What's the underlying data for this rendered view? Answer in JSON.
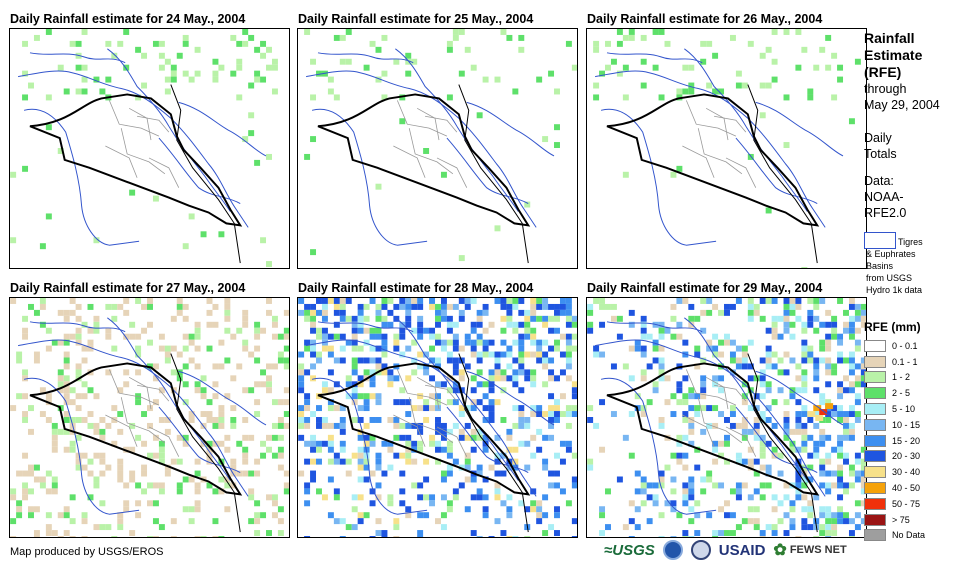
{
  "panels": [
    {
      "title": "Daily Rainfall estimate for 24 May., 2004",
      "rain_level": "minimal"
    },
    {
      "title": "Daily Rainfall estimate for 25 May., 2004",
      "rain_level": "minimal"
    },
    {
      "title": "Daily Rainfall estimate for 26 May., 2004",
      "rain_level": "minimal"
    },
    {
      "title": "Daily Rainfall estimate for 27 May., 2004",
      "rain_level": "light"
    },
    {
      "title": "Daily Rainfall estimate for 28 May., 2004",
      "rain_level": "heavy"
    },
    {
      "title": "Daily Rainfall estimate for 29 May., 2004",
      "rain_level": "moderate"
    }
  ],
  "sidebar": {
    "heading": "Rainfall Estimate (RFE)",
    "heading_lines": [
      "Rainfall",
      "Estimate",
      "(RFE)"
    ],
    "through": "through",
    "date": "May 29, 2004",
    "totals_lines": [
      "Daily",
      "Totals"
    ],
    "data_lines": [
      "Data:",
      "NOAA-",
      "RFE2.0"
    ],
    "basins_lines": [
      "Tigres",
      "& Euphrates",
      "Basins",
      "from USGS",
      "Hydro 1k data"
    ]
  },
  "legend": {
    "title": "RFE (mm)",
    "items": [
      {
        "label": "0 - 0.1",
        "color": "#ffffff"
      },
      {
        "label": "0.1 - 1",
        "color": "#e6d4b8"
      },
      {
        "label": "1 - 2",
        "color": "#b9f2a8"
      },
      {
        "label": "2 - 5",
        "color": "#5ee06a"
      },
      {
        "label": "5 - 10",
        "color": "#a8eef5"
      },
      {
        "label": "10 - 15",
        "color": "#78b6f2"
      },
      {
        "label": "15 - 20",
        "color": "#3d8ff0"
      },
      {
        "label": "20 - 30",
        "color": "#1f55e0"
      },
      {
        "label": "30 - 40",
        "color": "#f7e18a"
      },
      {
        "label": "40 - 50",
        "color": "#f5a20a"
      },
      {
        "label": "50 - 75",
        "color": "#f0300a"
      },
      {
        "label": "> 75",
        "color": "#9a1414"
      },
      {
        "label": "No Data",
        "color": "#9e9e9e"
      }
    ]
  },
  "footer": {
    "credit": "Map produced by USGS/EROS"
  },
  "logos": {
    "usgs": "≈USGS",
    "usaid": "USAID",
    "fews": "FEWS NET"
  }
}
